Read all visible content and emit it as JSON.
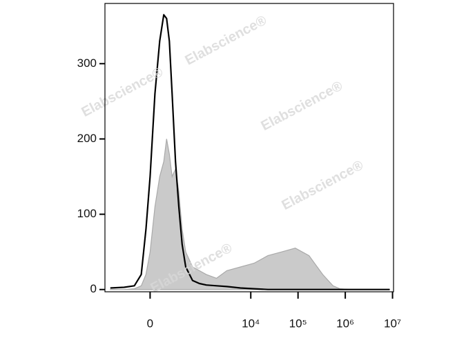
{
  "chart_data": {
    "type": "histogram",
    "watermark": "Elabscience®",
    "x": [
      -503,
      -243,
      -125,
      -66,
      -30,
      0,
      35,
      72,
      106,
      132,
      160,
      191,
      234,
      282,
      337,
      407,
      576,
      811,
      1138,
      1880,
      3108,
      6053,
      11810,
      23040,
      44930,
      87620,
      170900,
      333200,
      550000,
      766600,
      1262000,
      3434000,
      8700000
    ],
    "series": [
      {
        "color": "#a9a9a9",
        "fill": "#cacaca",
        "values": [
          0,
          0,
          1,
          5,
          20,
          50,
          110,
          150,
          170,
          200,
          180,
          150,
          160,
          130,
          80,
          50,
          30,
          25,
          20,
          15,
          25,
          30,
          35,
          45,
          50,
          55,
          45,
          20,
          5,
          1,
          0,
          0,
          0
        ]
      },
      {
        "color": "#000000",
        "values": [
          2,
          3,
          5,
          20,
          80,
          150,
          260,
          330,
          365,
          360,
          330,
          260,
          170,
          110,
          60,
          30,
          12,
          8,
          6,
          5,
          4,
          2,
          1,
          0,
          0,
          0,
          0,
          0,
          0,
          0,
          0,
          0,
          0
        ]
      }
    ],
    "xscale": "biexponential",
    "xlim": [
      -660,
      10500000
    ],
    "xticks": [
      0,
      {
        "value": 10000,
        "label": "10⁴"
      },
      {
        "value": 100000,
        "label": "10⁵"
      },
      {
        "value": 1000000,
        "label": "10⁶"
      },
      {
        "value": 10000000,
        "label": "10⁷"
      }
    ],
    "ylim": [
      -3,
      380
    ],
    "yticks": [
      0,
      100,
      200,
      300
    ]
  }
}
